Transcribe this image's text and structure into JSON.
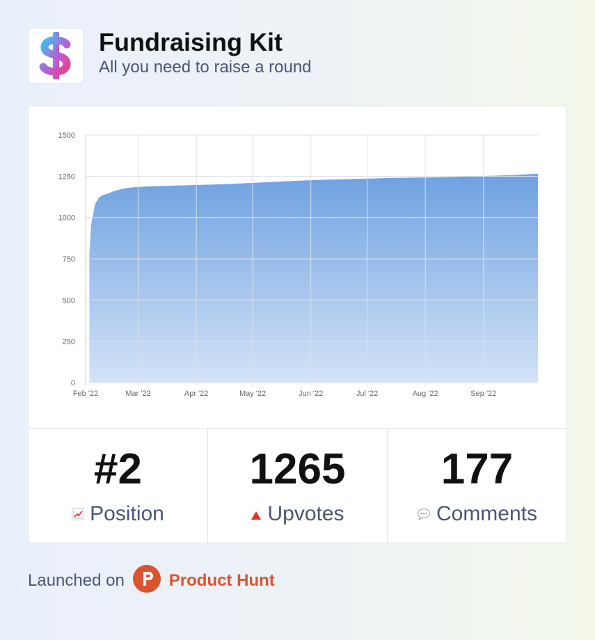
{
  "app": {
    "title": "Fundraising Kit",
    "subtitle": "All you need to raise a round",
    "logo_icon": "dollar-sign-icon"
  },
  "stats": [
    {
      "value": "#2",
      "label": "Position",
      "icon": "chart-trend-icon"
    },
    {
      "value": "1265",
      "label": "Upvotes",
      "icon": "upvote-triangle-icon"
    },
    {
      "value": "177",
      "label": "Comments",
      "icon": "speech-bubble-icon"
    }
  ],
  "footer": {
    "launched_text": "Launched on",
    "platform": "Product Hunt",
    "platform_color": "#da552f"
  },
  "chart_data": {
    "type": "area",
    "title": "",
    "xlabel": "",
    "ylabel": "",
    "ylim": [
      0,
      1500
    ],
    "yticks": [
      0,
      250,
      500,
      750,
      1000,
      1250,
      1500
    ],
    "xticks": [
      "Feb '22",
      "Mar '22",
      "Apr '22",
      "May '22",
      "Jun '22",
      "Jul '22",
      "Aug '22",
      "Sep '22"
    ],
    "xlim": [
      "2022-01-31",
      "2022-09-29"
    ],
    "grid": true,
    "color": "#6ea1e0",
    "series": [
      {
        "x": [
          "2022-02-02",
          "2022-02-03",
          "2022-02-04",
          "2022-02-05",
          "2022-02-07",
          "2022-02-09",
          "2022-02-12",
          "2022-02-15",
          "2022-02-20",
          "2022-02-25",
          "2022-03-05",
          "2022-03-15",
          "2022-04-01",
          "2022-04-15",
          "2022-05-01",
          "2022-05-15",
          "2022-06-01",
          "2022-06-15",
          "2022-07-01",
          "2022-07-15",
          "2022-08-01",
          "2022-08-15",
          "2022-09-01",
          "2022-09-15",
          "2022-09-29"
        ],
        "values": [
          780,
          960,
          1020,
          1080,
          1120,
          1135,
          1145,
          1160,
          1175,
          1183,
          1188,
          1192,
          1197,
          1202,
          1210,
          1218,
          1226,
          1231,
          1236,
          1240,
          1243,
          1246,
          1252,
          1257,
          1265
        ]
      }
    ]
  }
}
